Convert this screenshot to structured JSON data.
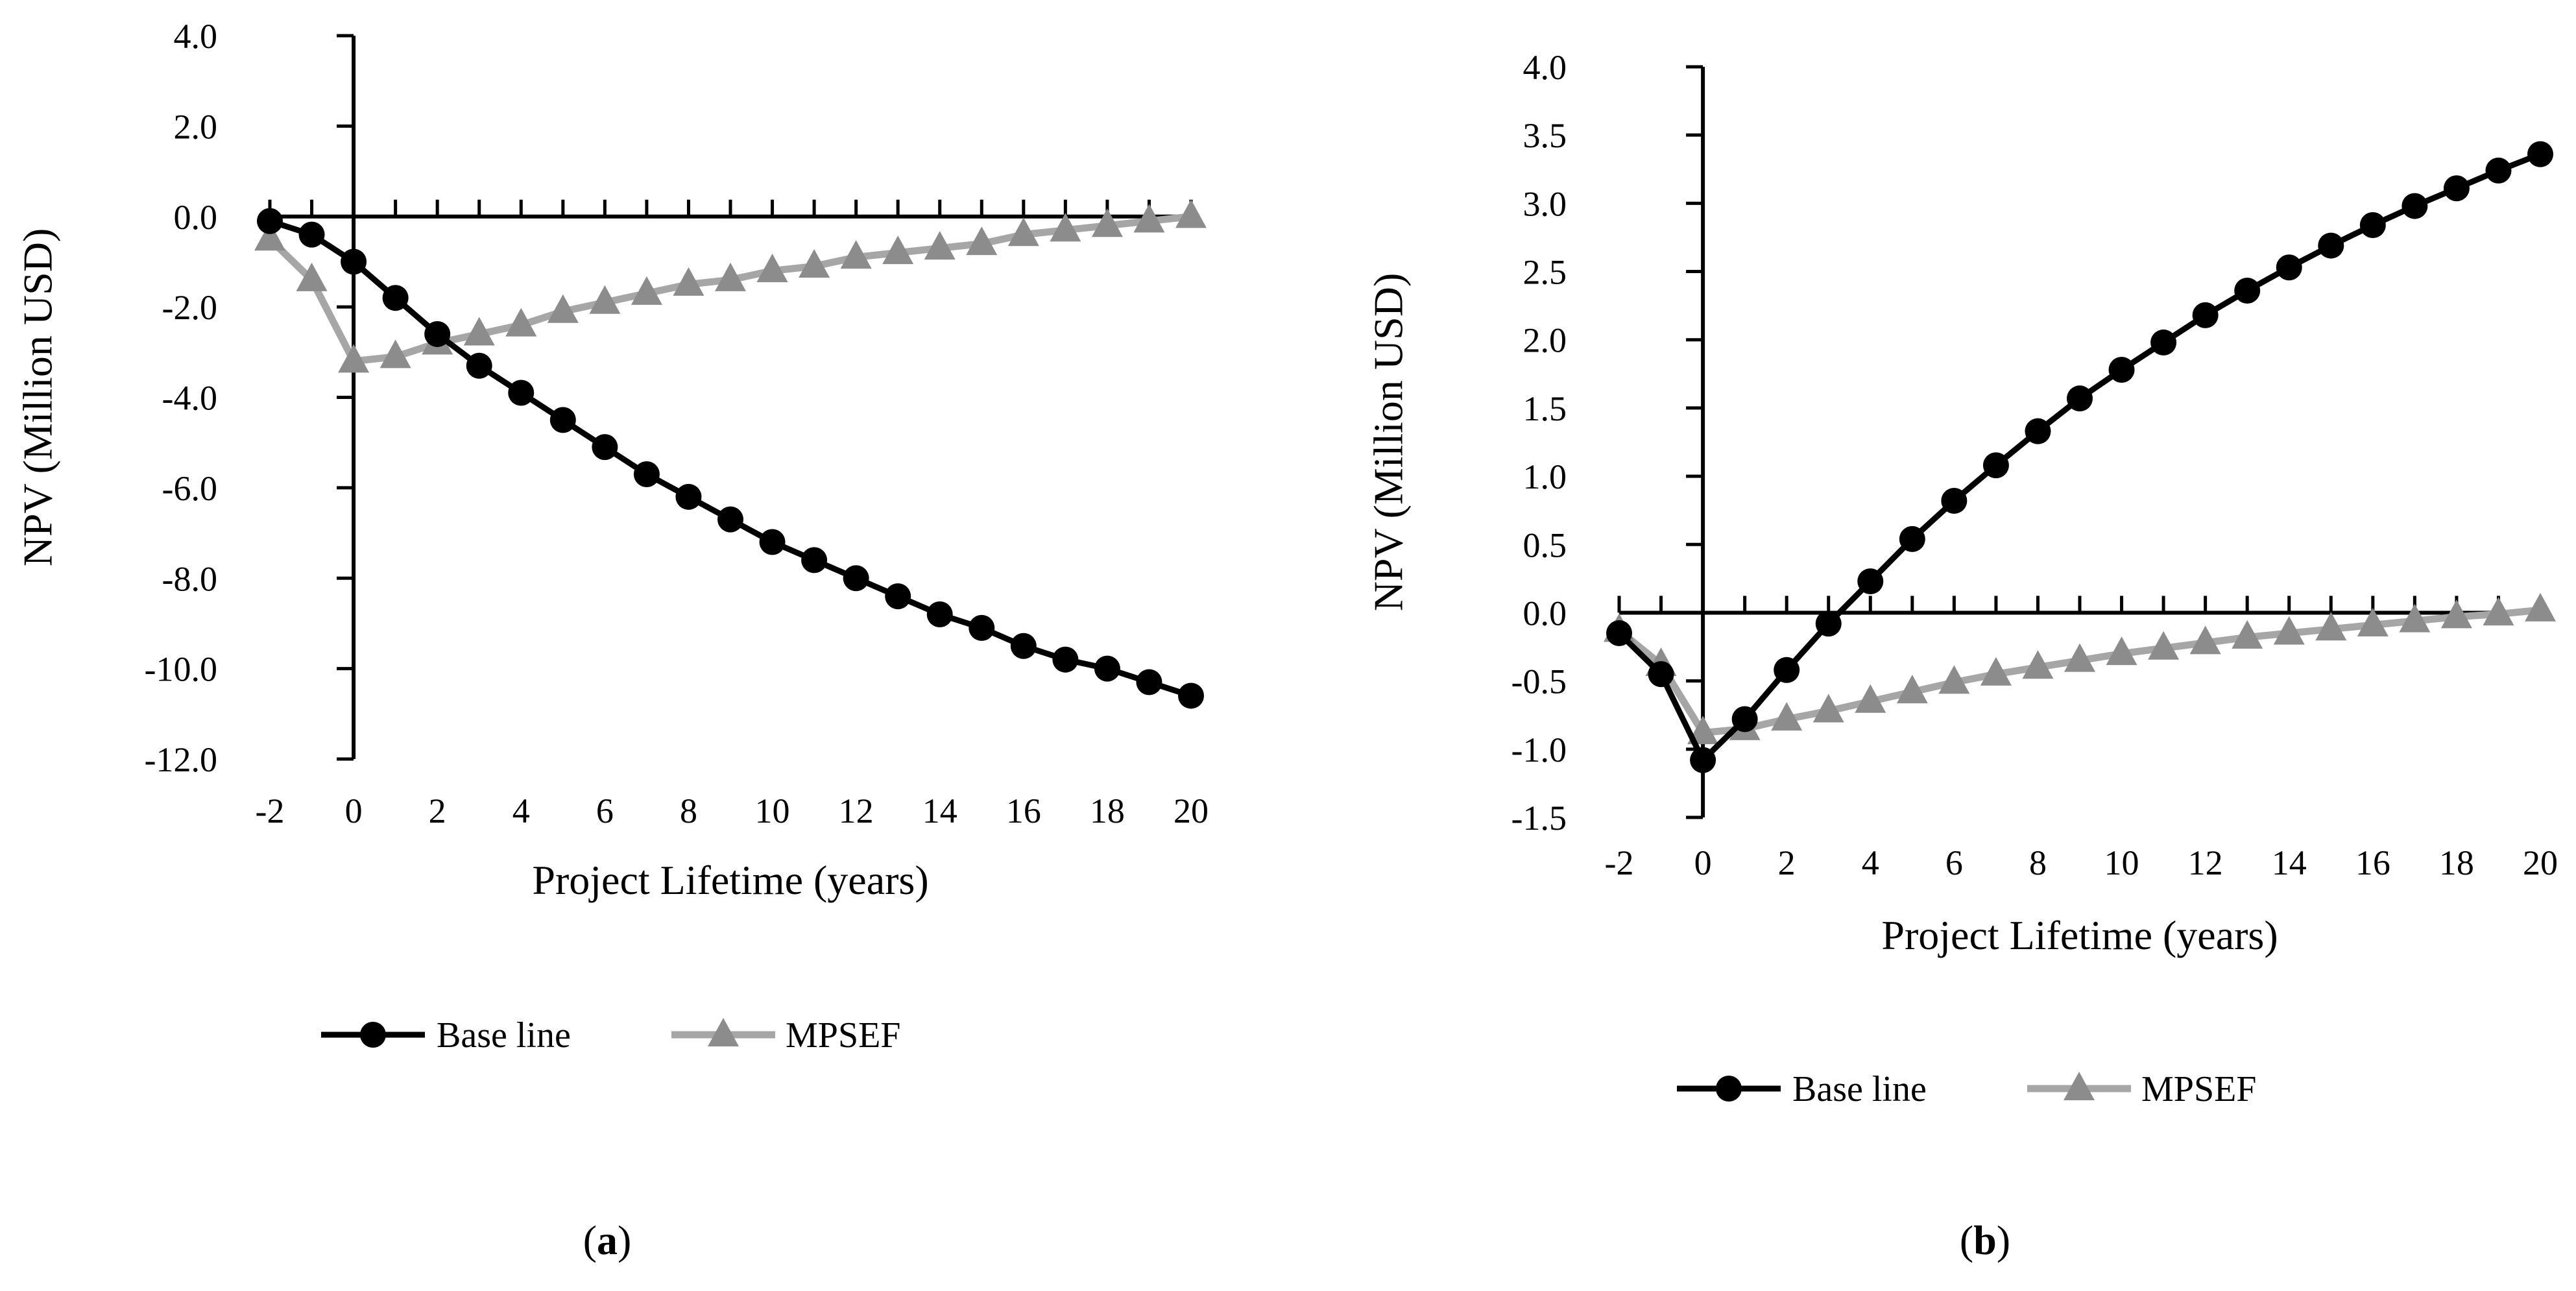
{
  "chart_data": [
    {
      "type": "line",
      "panel": "a",
      "caption": {
        "open": "(",
        "letter": "a",
        "close": ")"
      },
      "xlabel": "Project Lifetime (years)",
      "ylabel": "NPV (Million USD)",
      "xlim": [
        -2,
        20
      ],
      "ylim": [
        -12,
        4
      ],
      "xticks": [
        "-2",
        "0",
        "2",
        "4",
        "6",
        "8",
        "10",
        "12",
        "14",
        "16",
        "18",
        "20"
      ],
      "yticks": [
        "4.0",
        "2.0",
        "0.0",
        "-2.0",
        "-4.0",
        "-6.0",
        "-8.0",
        "-10.0",
        "-12.0"
      ],
      "x": [
        -2,
        -1,
        0,
        1,
        2,
        3,
        4,
        5,
        6,
        7,
        8,
        9,
        10,
        11,
        12,
        13,
        14,
        15,
        16,
        17,
        18,
        19,
        20
      ],
      "series": [
        {
          "name": "Base line",
          "color": "#000000",
          "marker": "circle",
          "values": [
            -0.1,
            -0.4,
            -1.0,
            -1.8,
            -2.6,
            -3.3,
            -3.9,
            -4.5,
            -5.1,
            -5.7,
            -6.2,
            -6.7,
            -7.2,
            -7.6,
            -8.0,
            -8.4,
            -8.8,
            -9.1,
            -9.5,
            -9.8,
            -10.0,
            -10.3,
            -10.6
          ]
        },
        {
          "name": "MPSEF",
          "color": "#a6a6a6",
          "marker": "triangle",
          "values": [
            -0.5,
            -1.4,
            -3.2,
            -3.1,
            -2.8,
            -2.6,
            -2.4,
            -2.1,
            -1.9,
            -1.7,
            -1.5,
            -1.4,
            -1.2,
            -1.1,
            -0.9,
            -0.8,
            -0.7,
            -0.6,
            -0.4,
            -0.3,
            -0.2,
            -0.1,
            0.0
          ]
        }
      ],
      "legend": "bottom"
    },
    {
      "type": "line",
      "panel": "b",
      "caption": {
        "open": "(",
        "letter": "b",
        "close": ")"
      },
      "xlabel": "Project Lifetime (years)",
      "ylabel": "NPV (Million USD)",
      "xlim": [
        -2,
        20
      ],
      "ylim": [
        -1.5,
        4.0
      ],
      "xticks": [
        "-2",
        "0",
        "2",
        "4",
        "6",
        "8",
        "10",
        "12",
        "14",
        "16",
        "18",
        "20"
      ],
      "yticks": [
        "4.0",
        "3.5",
        "3.0",
        "2.5",
        "2.0",
        "1.5",
        "1.0",
        "0.5",
        "0.0",
        "-0.5",
        "-1.0",
        "-1.5"
      ],
      "x": [
        -2,
        -1,
        0,
        1,
        2,
        3,
        4,
        5,
        6,
        7,
        8,
        9,
        10,
        11,
        12,
        13,
        14,
        15,
        16,
        17,
        18,
        19,
        20
      ],
      "series": [
        {
          "name": "Base line",
          "color": "#000000",
          "marker": "circle",
          "values": [
            -0.15,
            -0.45,
            -1.08,
            -0.78,
            -0.42,
            -0.08,
            0.23,
            0.54,
            0.82,
            1.08,
            1.33,
            1.57,
            1.78,
            1.98,
            2.18,
            2.36,
            2.53,
            2.69,
            2.84,
            2.98,
            3.11,
            3.24,
            3.36
          ]
        },
        {
          "name": "MPSEF",
          "color": "#a6a6a6",
          "marker": "triangle",
          "values": [
            -0.13,
            -0.38,
            -0.88,
            -0.85,
            -0.78,
            -0.72,
            -0.65,
            -0.58,
            -0.51,
            -0.45,
            -0.4,
            -0.35,
            -0.3,
            -0.26,
            -0.22,
            -0.18,
            -0.15,
            -0.12,
            -0.09,
            -0.06,
            -0.03,
            -0.01,
            0.02
          ]
        }
      ],
      "legend": "bottom"
    }
  ]
}
